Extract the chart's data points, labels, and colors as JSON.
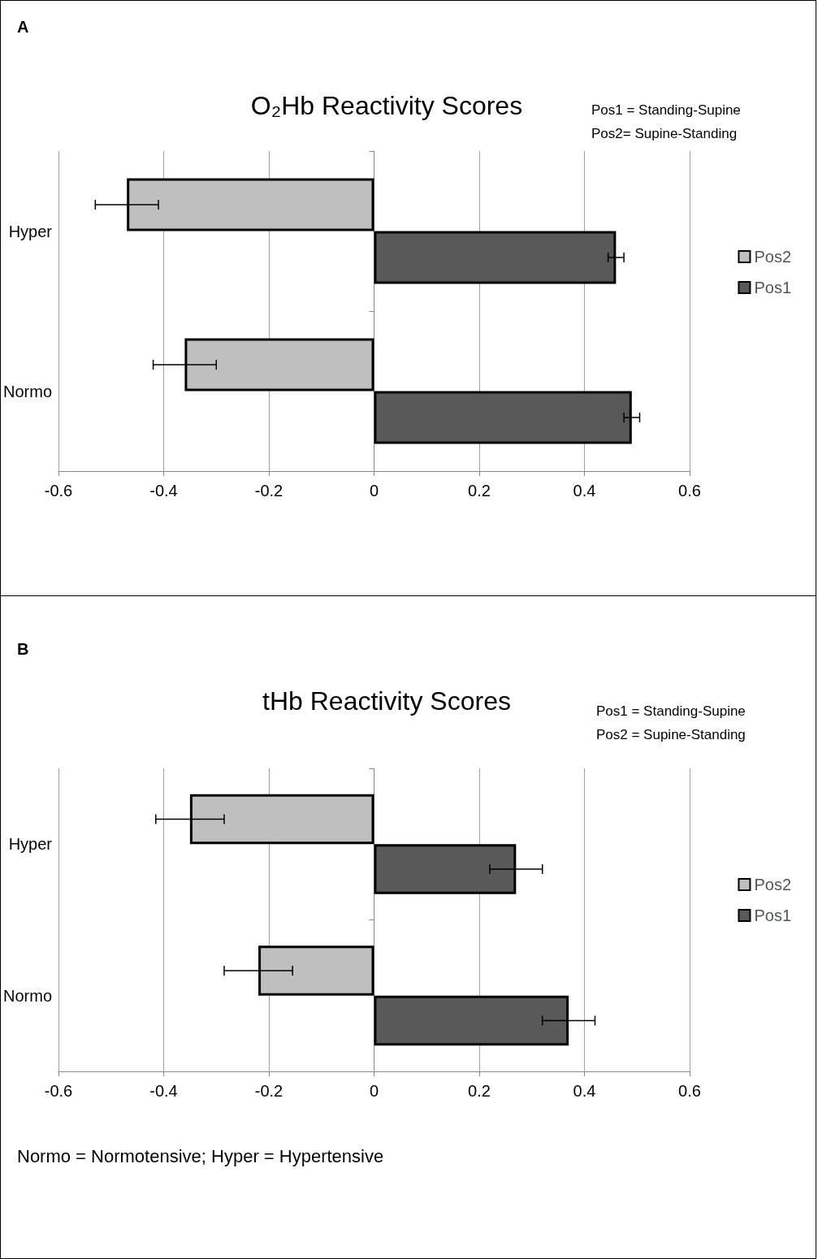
{
  "chart_data": [
    {
      "type": "bar",
      "orientation": "horizontal",
      "title": "O₂Hb Reactivity Scores",
      "categories": [
        "Hyper",
        "Normo"
      ],
      "series": [
        {
          "name": "Pos2",
          "color": "#bfbfbf",
          "values": [
            -0.47,
            -0.36
          ],
          "errors": [
            0.06,
            0.06
          ]
        },
        {
          "name": "Pos1",
          "color": "#595959",
          "values": [
            0.46,
            0.49
          ],
          "errors": [
            0.015,
            0.015
          ]
        }
      ],
      "xlim": [
        -0.6,
        0.6
      ],
      "xticks": [
        -0.6,
        -0.4,
        -0.2,
        0,
        0.2,
        0.4,
        0.6
      ],
      "grid": "x",
      "legend": "right",
      "annotations": [
        "A",
        "Pos1 = Standing-Supine",
        "Pos2= Supine-Standing"
      ]
    },
    {
      "type": "bar",
      "orientation": "horizontal",
      "title": "tHb Reactivity Scores",
      "categories": [
        "Hyper",
        "Normo"
      ],
      "series": [
        {
          "name": "Pos2",
          "color": "#bfbfbf",
          "values": [
            -0.35,
            -0.22
          ],
          "errors": [
            0.065,
            0.065
          ]
        },
        {
          "name": "Pos1",
          "color": "#595959",
          "values": [
            0.27,
            0.37
          ],
          "errors": [
            0.05,
            0.05
          ]
        }
      ],
      "xlim": [
        -0.6,
        0.6
      ],
      "xticks": [
        -0.6,
        -0.4,
        -0.2,
        0,
        0.2,
        0.4,
        0.6
      ],
      "grid": "x",
      "legend": "right",
      "annotations": [
        "B",
        "Pos1 = Standing-Supine",
        "Pos2 = Supine-Standing",
        "Normo = Normotensive; Hyper = Hypertensive"
      ]
    }
  ]
}
